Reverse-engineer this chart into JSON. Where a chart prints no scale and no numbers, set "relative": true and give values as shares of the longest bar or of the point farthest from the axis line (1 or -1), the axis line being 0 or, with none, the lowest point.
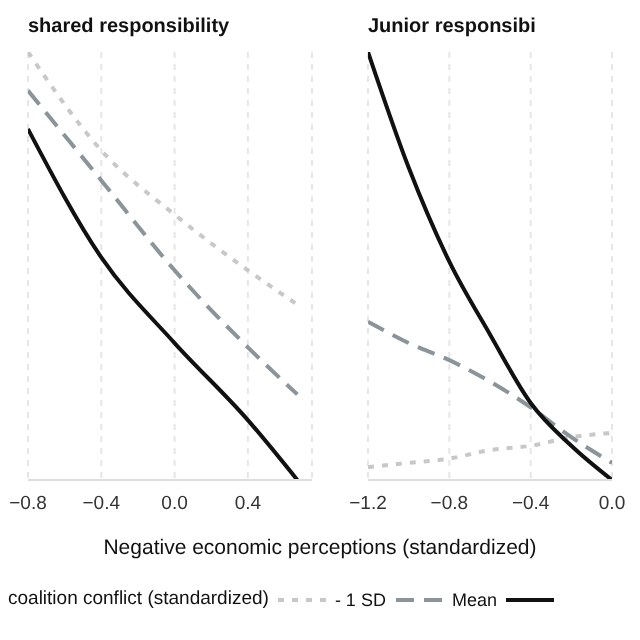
{
  "chart_data": [
    {
      "type": "line",
      "title": "shared responsibility",
      "xlabel": "Negative economic perceptions (standardized)",
      "legend_title": "coalition conflict (standardized)",
      "legend": "bottom",
      "relative": true,
      "grid": "x",
      "x": [
        -0.8,
        -0.4,
        0,
        0.4,
        0.67
      ],
      "xlim": [
        -0.8,
        0.75
      ],
      "xticks": [
        {
          "value": -0.8,
          "label": "−0.8"
        },
        {
          "value": -0.4,
          "label": "−0.4"
        },
        {
          "value": 0,
          "label": "0.0"
        },
        0.4
      ],
      "series": [
        {
          "name": "- 1 SD",
          "color": "#c8c8c8",
          "line_style": "dotted",
          "values": [
            1,
            0.77,
            0.62,
            0.49,
            0.41
          ]
        },
        {
          "name": "Mean",
          "color": "#8a9499",
          "line_style": "dashed",
          "values": [
            0.91,
            0.7,
            0.49,
            0.31,
            0.2
          ]
        },
        {
          "color": "#111111",
          "line_style": "solid",
          "values": [
            0.82,
            0.52,
            0.32,
            0.14,
            0
          ]
        }
      ]
    },
    {
      "type": "line",
      "title": "Junior responsibi",
      "relative": true,
      "grid": "x",
      "x": [
        -1.2,
        -1.0,
        -0.8,
        -0.6,
        -0.4,
        -0.2,
        0
      ],
      "xlim": [
        -1.2,
        0
      ],
      "xticks": [
        {
          "value": -1.2,
          "label": "−1.2"
        },
        {
          "value": -0.8,
          "label": "−0.8"
        },
        {
          "value": -0.4,
          "label": "−0.4"
        },
        {
          "value": 0,
          "label": "0.0"
        }
      ],
      "series": [
        {
          "color": "#c8c8c8",
          "line_style": "dotted",
          "values": [
            0.03,
            0.04,
            0.05,
            0.07,
            0.08,
            0.1,
            0.11
          ]
        },
        {
          "color": "#8a9499",
          "line_style": "dashed",
          "values": [
            0.37,
            0.32,
            0.28,
            0.23,
            0.17,
            0.1,
            0.04
          ]
        },
        {
          "color": "#111111",
          "line_style": "solid",
          "values": [
            1,
            0.73,
            0.51,
            0.34,
            0.18,
            0.08,
            0
          ]
        }
      ]
    }
  ]
}
